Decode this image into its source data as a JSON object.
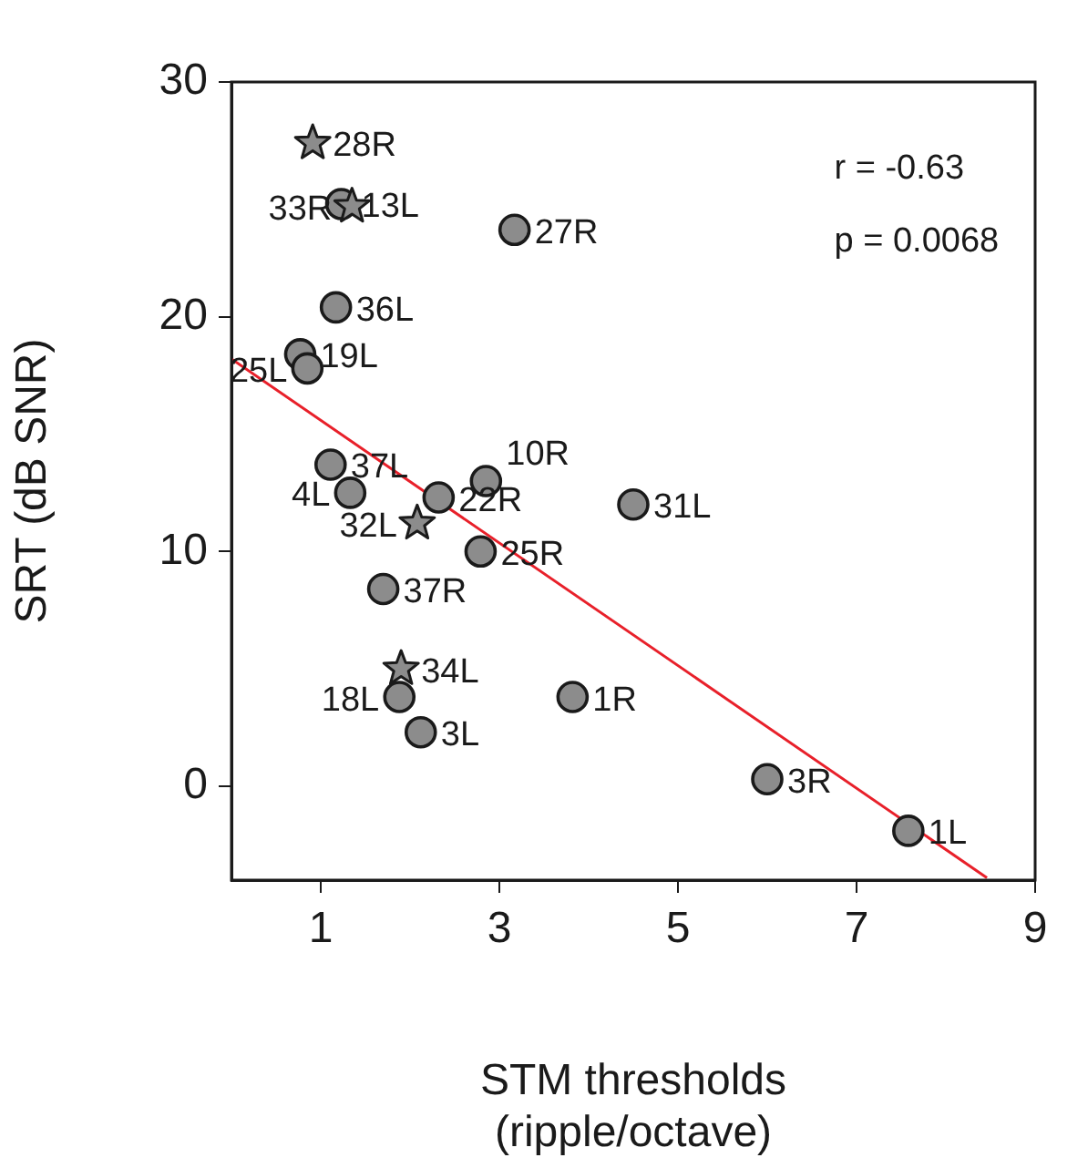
{
  "chart_data": {
    "type": "scatter",
    "xlabel": "STM thresholds\n(ripple/octave)",
    "ylabel": "SRT (dB SNR)",
    "xlim": [
      0,
      9
    ],
    "xticks": [
      1,
      3,
      5,
      7,
      9
    ],
    "ylim": [
      -4,
      30
    ],
    "yticks": [
      0,
      10,
      20,
      30
    ],
    "grid": false,
    "legend": false,
    "series": [
      {
        "color": "#8c8c8c",
        "marker": "circle",
        "x": [
          1.23,
          3.17,
          1.17,
          0.77,
          0.85,
          1.11,
          1.33,
          2.32,
          2.85,
          2.79,
          1.7,
          1.88,
          2.12,
          3.82,
          4.5,
          6.0,
          7.58
        ],
        "values": [
          24.8,
          23.7,
          20.4,
          18.4,
          17.8,
          13.7,
          12.5,
          12.3,
          13.0,
          10.0,
          8.4,
          3.8,
          2.3,
          3.8,
          12.0,
          0.3,
          -1.9
        ]
      },
      {
        "color": "#8c8c8c",
        "marker": "star",
        "x": [
          0.91,
          1.35,
          2.08,
          1.9
        ],
        "values": [
          27.4,
          24.7,
          11.2,
          5.0
        ]
      },
      {
        "type": "line",
        "color": "#e8202a",
        "marker": "none",
        "x": [
          0,
          8.46
        ],
        "values": [
          18.2,
          -3.9
        ]
      }
    ],
    "annotations": [
      "r = -0.63",
      "p = 0.0068",
      {
        "text": "28R",
        "x": 0.91,
        "y": 27.4
      },
      {
        "text": "13L",
        "x": 1.23,
        "y": 24.8
      },
      {
        "text": "33R",
        "x": 1.35,
        "y": 24.7
      },
      {
        "text": "27R",
        "x": 3.17,
        "y": 23.7
      },
      {
        "text": "36L",
        "x": 1.17,
        "y": 20.4
      },
      {
        "text": "19L",
        "x": 0.77,
        "y": 18.4
      },
      {
        "text": "25L",
        "x": 0.85,
        "y": 17.8
      },
      {
        "text": "37L",
        "x": 1.11,
        "y": 13.7
      },
      {
        "text": "4L",
        "x": 1.33,
        "y": 12.5
      },
      {
        "text": "22R",
        "x": 2.32,
        "y": 12.3
      },
      {
        "text": "10R",
        "x": 2.85,
        "y": 13.0
      },
      {
        "text": "32L",
        "x": 2.08,
        "y": 11.2
      },
      {
        "text": "25R",
        "x": 2.79,
        "y": 10.0
      },
      {
        "text": "37R",
        "x": 1.7,
        "y": 8.4
      },
      {
        "text": "34L",
        "x": 1.9,
        "y": 5.0
      },
      {
        "text": "18L",
        "x": 1.88,
        "y": 3.8
      },
      {
        "text": "3L",
        "x": 2.12,
        "y": 2.3
      },
      {
        "text": "1R",
        "x": 3.82,
        "y": 3.8
      },
      {
        "text": "31L",
        "x": 4.5,
        "y": 12.0
      },
      {
        "text": "3R",
        "x": 6.0,
        "y": 0.3
      },
      {
        "text": "1L",
        "x": 7.58,
        "y": -1.9
      }
    ]
  }
}
